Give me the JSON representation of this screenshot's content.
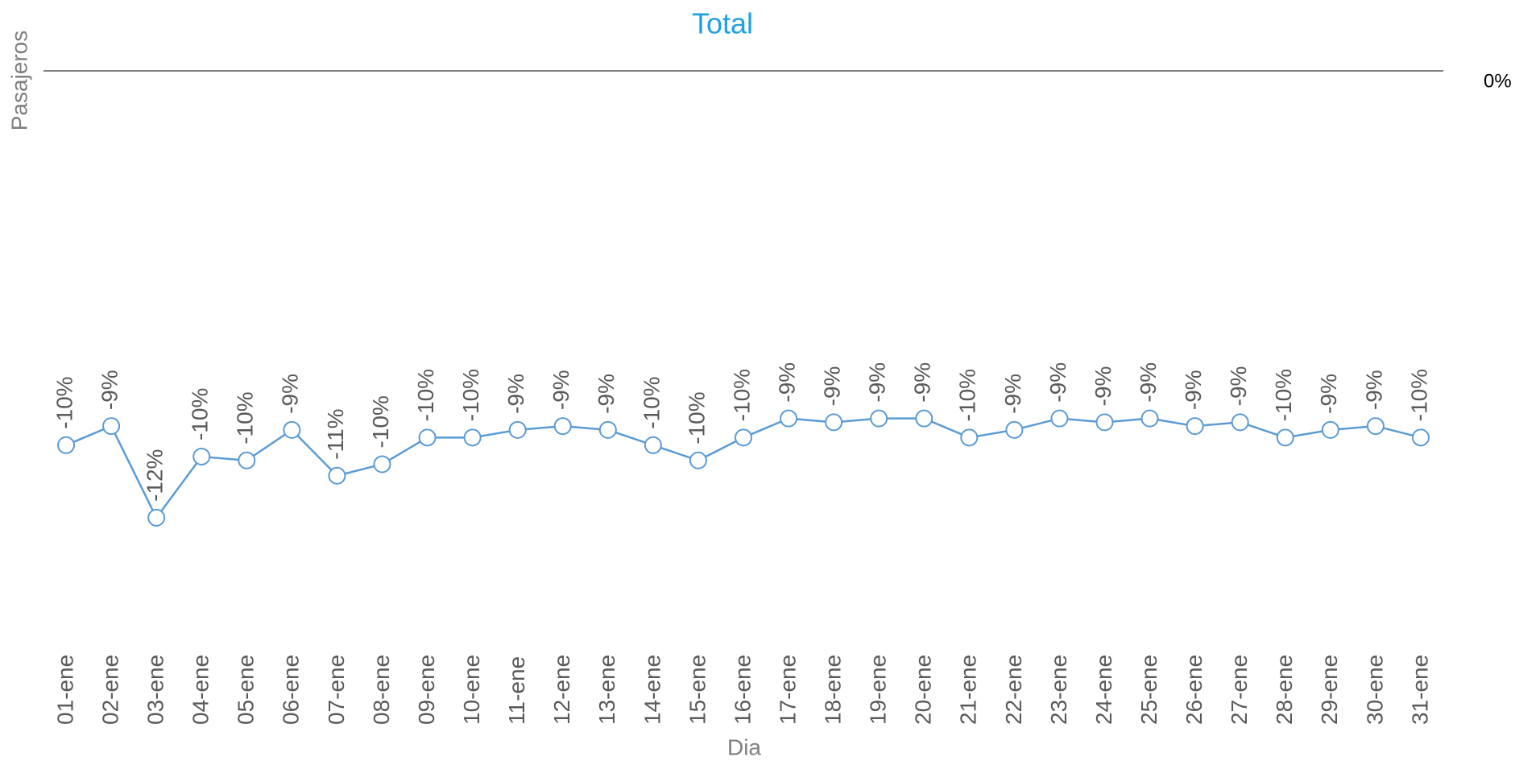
{
  "chart_data": {
    "type": "line",
    "title": "Total",
    "y_label": "Pasajeros",
    "x_label": "Dia",
    "categories": [
      "01-ene",
      "02-ene",
      "03-ene",
      "04-ene",
      "05-ene",
      "06-ene",
      "07-ene",
      "08-ene",
      "09-ene",
      "10-ene",
      "11-ene",
      "12-ene",
      "13-ene",
      "14-ene",
      "15-ene",
      "16-ene",
      "17-ene",
      "18-ene",
      "19-ene",
      "20-ene",
      "21-ene",
      "22-ene",
      "23-ene",
      "24-ene",
      "25-ene",
      "26-ene",
      "27-ene",
      "28-ene",
      "29-ene",
      "30-ene",
      "31-ene"
    ],
    "series": [
      {
        "name": "Total",
        "color": "#5b9bd5",
        "values": [
          -9.8,
          -9.3,
          -11.7,
          -10.1,
          -10.2,
          -9.4,
          -10.6,
          -10.3,
          -9.6,
          -9.6,
          -9.4,
          -9.3,
          -9.4,
          -9.8,
          -10.2,
          -9.6,
          -9.1,
          -9.2,
          -9.1,
          -9.1,
          -9.6,
          -9.4,
          -9.1,
          -9.2,
          -9.1,
          -9.3,
          -9.2,
          -9.6,
          -9.4,
          -9.3,
          -9.6
        ],
        "value_labels": [
          "-10%",
          "-9%",
          "-12%",
          "-10%",
          "-10%",
          "-9%",
          "-11%",
          "-10%",
          "-10%",
          "-10%",
          "-9%",
          "-9%",
          "-9%",
          "-10%",
          "-10%",
          "-10%",
          "-9%",
          "-9%",
          "-9%",
          "-9%",
          "-10%",
          "-9%",
          "-9%",
          "-9%",
          "-9%",
          "-9%",
          "-9%",
          "-10%",
          "-9%",
          "-9%",
          "-10%"
        ]
      }
    ],
    "ylim": [
      -14,
      0
    ],
    "yticks": [
      {
        "value": 0,
        "label": "0%"
      }
    ],
    "grid": true
  }
}
